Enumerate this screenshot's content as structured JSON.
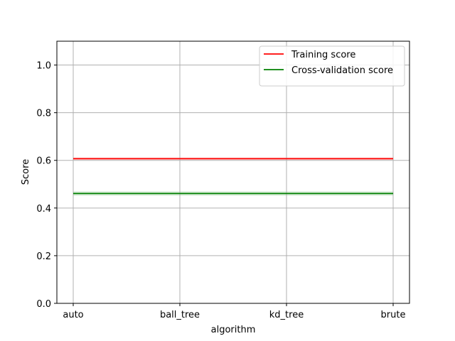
{
  "chart_data": {
    "type": "line",
    "categories": [
      "auto",
      "ball_tree",
      "kd_tree",
      "brute"
    ],
    "series": [
      {
        "name": "Training score",
        "values": [
          0.607,
          0.607,
          0.607,
          0.607
        ],
        "band": [
          0.602,
          0.612
        ],
        "color": "#ff0000"
      },
      {
        "name": "Cross-validation score",
        "values": [
          0.461,
          0.461,
          0.461,
          0.461
        ],
        "band": [
          0.452,
          0.47
        ],
        "color": "#008000"
      }
    ],
    "title": "",
    "xlabel": "algorithm",
    "ylabel": "Score",
    "ylim": [
      0.0,
      1.1
    ],
    "yticks": [
      0.0,
      0.2,
      0.4,
      0.6,
      0.8,
      1.0
    ],
    "ytick_labels": [
      "0.0",
      "0.2",
      "0.4",
      "0.6",
      "0.8",
      "1.0"
    ],
    "grid": true,
    "legend_position": "top-right"
  }
}
